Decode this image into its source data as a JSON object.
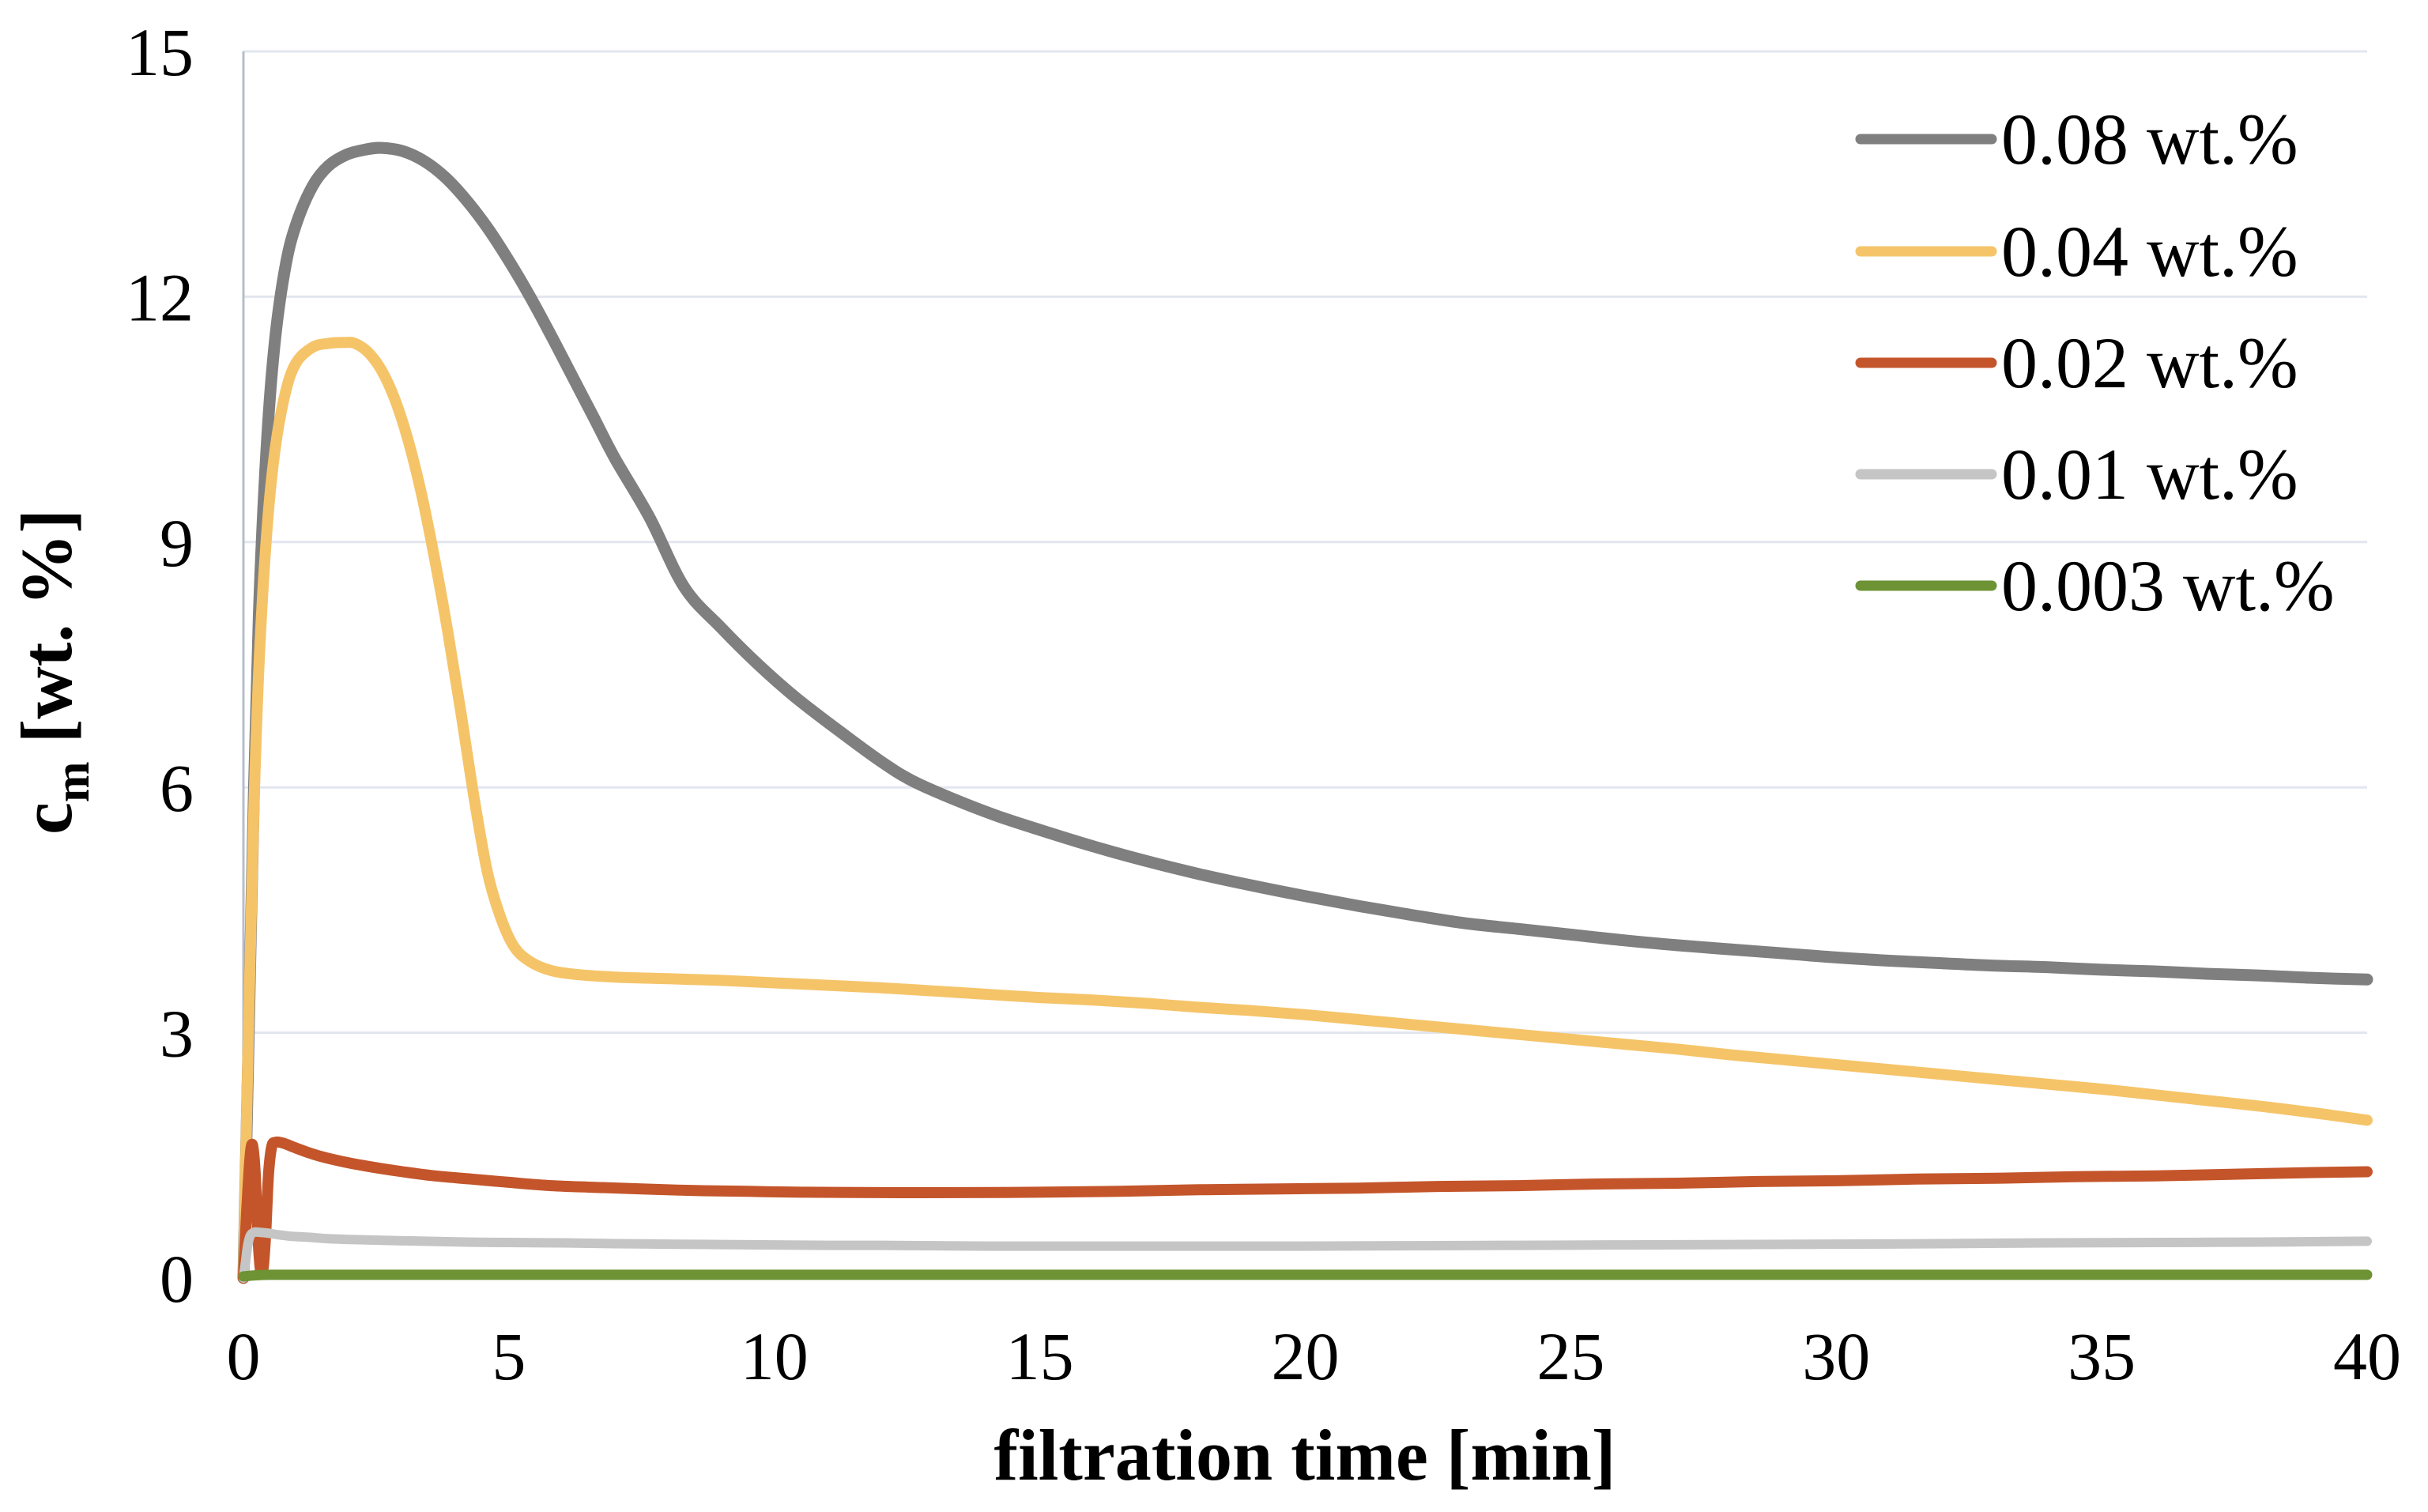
{
  "chart_data": {
    "type": "line",
    "title": "",
    "xlabel": "filtration time [min]",
    "ylabel": "cm [wt. %]",
    "ylabel_parts": {
      "main": "c",
      "sub": "m",
      "units": " [wt. %]"
    },
    "xlim": [
      0,
      40
    ],
    "ylim": [
      0,
      15
    ],
    "xticks": [
      0,
      5,
      10,
      15,
      20,
      25,
      30,
      35,
      40
    ],
    "yticks": [
      0,
      3,
      6,
      9,
      12,
      15
    ],
    "grid": "horizontal-only",
    "grid_color": "#E2E6EF",
    "axis_line_color": "#B7BDCA",
    "legend_position": "top-right-inside",
    "legend": [
      "0.08 wt.%",
      "0.04 wt.%",
      "0.02 wt.%",
      "0.01 wt.%",
      "0.003 wt.%"
    ],
    "series": [
      {
        "name": "0.08 wt.%",
        "color": "#7F7F7F",
        "width": 15,
        "points": [
          [
            0,
            0
          ],
          [
            0.1,
            3.0
          ],
          [
            0.2,
            6.0
          ],
          [
            0.3,
            8.3
          ],
          [
            0.45,
            10.3
          ],
          [
            0.6,
            11.5
          ],
          [
            0.8,
            12.4
          ],
          [
            1.0,
            12.9
          ],
          [
            1.3,
            13.35
          ],
          [
            1.6,
            13.6
          ],
          [
            1.95,
            13.74
          ],
          [
            2.3,
            13.8
          ],
          [
            2.6,
            13.82
          ],
          [
            3.0,
            13.78
          ],
          [
            3.4,
            13.66
          ],
          [
            3.8,
            13.46
          ],
          [
            4.2,
            13.18
          ],
          [
            4.6,
            12.84
          ],
          [
            5.0,
            12.44
          ],
          [
            5.4,
            12.0
          ],
          [
            5.8,
            11.52
          ],
          [
            6.2,
            11.02
          ],
          [
            6.6,
            10.52
          ],
          [
            7.0,
            10.02
          ],
          [
            7.65,
            9.3
          ],
          [
            8.3,
            8.45
          ],
          [
            9.0,
            7.95
          ],
          [
            9.7,
            7.5
          ],
          [
            10.4,
            7.1
          ],
          [
            11.2,
            6.7
          ],
          [
            12.0,
            6.32
          ],
          [
            12.6,
            6.08
          ],
          [
            13.4,
            5.85
          ],
          [
            14.2,
            5.65
          ],
          [
            15,
            5.48
          ],
          [
            16,
            5.28
          ],
          [
            17,
            5.1
          ],
          [
            18,
            4.94
          ],
          [
            19,
            4.8
          ],
          [
            20,
            4.67
          ],
          [
            21,
            4.55
          ],
          [
            22,
            4.44
          ],
          [
            23,
            4.34
          ],
          [
            24,
            4.27
          ],
          [
            25,
            4.2
          ],
          [
            26,
            4.13
          ],
          [
            27,
            4.07
          ],
          [
            28,
            4.02
          ],
          [
            29,
            3.97
          ],
          [
            30,
            3.92
          ],
          [
            31,
            3.88
          ],
          [
            32,
            3.85
          ],
          [
            33,
            3.82
          ],
          [
            34,
            3.8
          ],
          [
            35,
            3.77
          ],
          [
            36,
            3.75
          ],
          [
            37,
            3.72
          ],
          [
            38,
            3.7
          ],
          [
            39,
            3.67
          ],
          [
            40,
            3.65
          ]
        ]
      },
      {
        "name": "0.04 wt.%",
        "color": "#F5C469",
        "width": 14,
        "points": [
          [
            0,
            0
          ],
          [
            0.1,
            3.2
          ],
          [
            0.2,
            5.8
          ],
          [
            0.3,
            7.6
          ],
          [
            0.45,
            9.2
          ],
          [
            0.6,
            10.15
          ],
          [
            0.8,
            10.85
          ],
          [
            1.0,
            11.2
          ],
          [
            1.3,
            11.38
          ],
          [
            1.6,
            11.43
          ],
          [
            1.9,
            11.44
          ],
          [
            2.1,
            11.43
          ],
          [
            2.35,
            11.32
          ],
          [
            2.6,
            11.1
          ],
          [
            2.85,
            10.75
          ],
          [
            3.1,
            10.25
          ],
          [
            3.35,
            9.6
          ],
          [
            3.6,
            8.8
          ],
          [
            3.85,
            7.9
          ],
          [
            4.1,
            6.9
          ],
          [
            4.35,
            5.85
          ],
          [
            4.6,
            4.95
          ],
          [
            4.85,
            4.4
          ],
          [
            5.1,
            4.05
          ],
          [
            5.4,
            3.87
          ],
          [
            5.8,
            3.76
          ],
          [
            6.3,
            3.71
          ],
          [
            7,
            3.68
          ],
          [
            8,
            3.66
          ],
          [
            9,
            3.64
          ],
          [
            10,
            3.61
          ],
          [
            11,
            3.58
          ],
          [
            12,
            3.55
          ],
          [
            13,
            3.51
          ],
          [
            14,
            3.47
          ],
          [
            15,
            3.43
          ],
          [
            16,
            3.4
          ],
          [
            17,
            3.36
          ],
          [
            18,
            3.31
          ],
          [
            19,
            3.27
          ],
          [
            20,
            3.22
          ],
          [
            21,
            3.16
          ],
          [
            22,
            3.1
          ],
          [
            23,
            3.04
          ],
          [
            24,
            2.98
          ],
          [
            25,
            2.92
          ],
          [
            26,
            2.86
          ],
          [
            27,
            2.8
          ],
          [
            28,
            2.73
          ],
          [
            29,
            2.67
          ],
          [
            30,
            2.61
          ],
          [
            31,
            2.55
          ],
          [
            32,
            2.49
          ],
          [
            33,
            2.43
          ],
          [
            34,
            2.37
          ],
          [
            35,
            2.31
          ],
          [
            36,
            2.24
          ],
          [
            37,
            2.17
          ],
          [
            38,
            2.1
          ],
          [
            39,
            2.02
          ],
          [
            40,
            1.93
          ]
        ]
      },
      {
        "name": "0.02 wt.%",
        "color": "#C4552B",
        "width": 14,
        "points": [
          [
            0,
            0
          ],
          [
            0.06,
            0.8
          ],
          [
            0.12,
            1.45
          ],
          [
            0.17,
            1.63
          ],
          [
            0.22,
            1.3
          ],
          [
            0.27,
            0.55
          ],
          [
            0.32,
            0.1
          ],
          [
            0.37,
            0.12
          ],
          [
            0.42,
            0.55
          ],
          [
            0.47,
            1.25
          ],
          [
            0.53,
            1.6
          ],
          [
            0.6,
            1.66
          ],
          [
            0.75,
            1.65
          ],
          [
            0.95,
            1.6
          ],
          [
            1.2,
            1.54
          ],
          [
            1.5,
            1.48
          ],
          [
            1.9,
            1.42
          ],
          [
            2.4,
            1.36
          ],
          [
            3.0,
            1.3
          ],
          [
            3.6,
            1.25
          ],
          [
            4.3,
            1.21
          ],
          [
            5.0,
            1.17
          ],
          [
            5.8,
            1.13
          ],
          [
            6.6,
            1.11
          ],
          [
            7.5,
            1.09
          ],
          [
            8.5,
            1.07
          ],
          [
            9.5,
            1.06
          ],
          [
            10.5,
            1.05
          ],
          [
            12,
            1.045
          ],
          [
            13.5,
            1.045
          ],
          [
            15,
            1.05
          ],
          [
            16.5,
            1.06
          ],
          [
            18,
            1.08
          ],
          [
            19.5,
            1.09
          ],
          [
            21,
            1.1
          ],
          [
            22.5,
            1.12
          ],
          [
            24,
            1.13
          ],
          [
            25.5,
            1.15
          ],
          [
            27,
            1.16
          ],
          [
            28.5,
            1.18
          ],
          [
            30,
            1.19
          ],
          [
            31.5,
            1.21
          ],
          [
            33,
            1.22
          ],
          [
            34.5,
            1.24
          ],
          [
            36,
            1.25
          ],
          [
            37.5,
            1.27
          ],
          [
            39,
            1.29
          ],
          [
            40,
            1.3
          ]
        ]
      },
      {
        "name": "0.01 wt.%",
        "color": "#C5C5C5",
        "width": 12,
        "points": [
          [
            0,
            0
          ],
          [
            0.04,
            0.2
          ],
          [
            0.08,
            0.4
          ],
          [
            0.13,
            0.52
          ],
          [
            0.2,
            0.56
          ],
          [
            0.3,
            0.56
          ],
          [
            0.45,
            0.55
          ],
          [
            0.65,
            0.53
          ],
          [
            0.9,
            0.51
          ],
          [
            1.2,
            0.5
          ],
          [
            1.6,
            0.48
          ],
          [
            2.1,
            0.47
          ],
          [
            2.7,
            0.46
          ],
          [
            3.4,
            0.45
          ],
          [
            4.2,
            0.44
          ],
          [
            5,
            0.435
          ],
          [
            6,
            0.43
          ],
          [
            7,
            0.42
          ],
          [
            8,
            0.415
          ],
          [
            9,
            0.41
          ],
          [
            10,
            0.405
          ],
          [
            11,
            0.4
          ],
          [
            12,
            0.4
          ],
          [
            13,
            0.395
          ],
          [
            14,
            0.39
          ],
          [
            15,
            0.39
          ],
          [
            16,
            0.39
          ],
          [
            17,
            0.39
          ],
          [
            18,
            0.39
          ],
          [
            19,
            0.39
          ],
          [
            20,
            0.39
          ],
          [
            22,
            0.395
          ],
          [
            24,
            0.4
          ],
          [
            26,
            0.405
          ],
          [
            28,
            0.41
          ],
          [
            30,
            0.415
          ],
          [
            32,
            0.42
          ],
          [
            34,
            0.43
          ],
          [
            36,
            0.435
          ],
          [
            38,
            0.44
          ],
          [
            40,
            0.45
          ]
        ]
      },
      {
        "name": "0.003 wt.%",
        "color": "#6D9334",
        "width": 13,
        "points": [
          [
            0,
            0.02
          ],
          [
            0.5,
            0.04
          ],
          [
            2,
            0.04
          ],
          [
            5,
            0.04
          ],
          [
            10,
            0.04
          ],
          [
            15,
            0.04
          ],
          [
            20,
            0.04
          ],
          [
            25,
            0.04
          ],
          [
            30,
            0.04
          ],
          [
            35,
            0.04
          ],
          [
            40,
            0.04
          ]
        ]
      }
    ]
  }
}
